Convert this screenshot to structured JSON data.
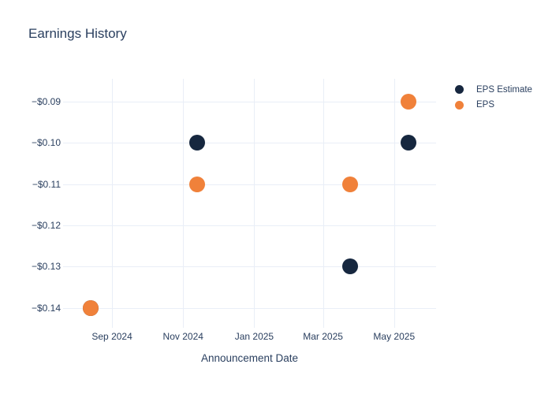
{
  "chart_data": {
    "type": "scatter",
    "title": "Earnings History",
    "xlabel": "Announcement Date",
    "ylabel": "",
    "legend_position": "right",
    "x_axis": {
      "grid": true,
      "range": [
        "2024-07-21",
        "2025-06-06"
      ],
      "ticks": [
        {
          "label": "Sep 2024",
          "date": "2024-09-01"
        },
        {
          "label": "Nov 2024",
          "date": "2024-11-01"
        },
        {
          "label": "Jan 2025",
          "date": "2025-01-01"
        },
        {
          "label": "Mar 2025",
          "date": "2025-03-01"
        },
        {
          "label": "May 2025",
          "date": "2025-05-01"
        }
      ]
    },
    "y_axis": {
      "grid": true,
      "range": [
        -0.1439,
        -0.0845
      ],
      "ticks": [
        {
          "label": "−$0.09",
          "value": -0.09
        },
        {
          "label": "−$0.10",
          "value": -0.1
        },
        {
          "label": "−$0.11",
          "value": -0.11
        },
        {
          "label": "−$0.12",
          "value": -0.12
        },
        {
          "label": "−$0.13",
          "value": -0.13
        },
        {
          "label": "−$0.14",
          "value": -0.14
        }
      ]
    },
    "series": [
      {
        "name": "EPS Estimate",
        "color": "#16273f",
        "points": [
          {
            "date": "2024-08-14",
            "value": -0.14
          },
          {
            "date": "2024-11-13",
            "value": -0.1
          },
          {
            "date": "2025-03-24",
            "value": -0.13
          },
          {
            "date": "2025-05-13",
            "value": -0.1
          }
        ]
      },
      {
        "name": "EPS",
        "color": "#f0813a",
        "points": [
          {
            "date": "2024-08-14",
            "value": -0.14
          },
          {
            "date": "2024-11-13",
            "value": -0.11
          },
          {
            "date": "2025-03-24",
            "value": -0.11
          },
          {
            "date": "2025-05-13",
            "value": -0.09
          }
        ]
      }
    ]
  },
  "colors": {
    "text": "#2a3f5f",
    "grid": "#e9eef7",
    "background": "#ffffff"
  }
}
